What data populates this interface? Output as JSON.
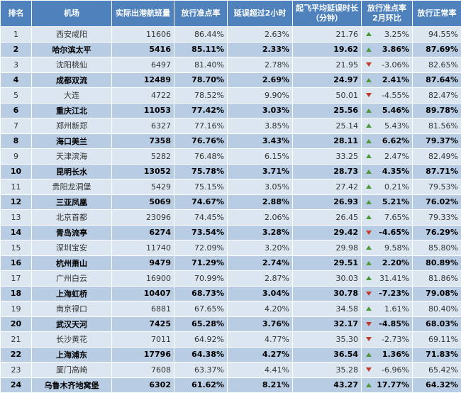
{
  "headers": {
    "rank": "排名",
    "airport": "机场",
    "flights": "实际出港航班量",
    "ontime": "放行准点率",
    "delay2h": "延误超过2小时",
    "avgdelay_line1": "起飞平均延误时长",
    "avgdelay_line2": "（分钟）",
    "mom_line1": "放行准点率",
    "mom_line2": "2月环比",
    "normal": "放行正常率"
  },
  "rows": [
    {
      "rank": "1",
      "airport": "西安咸阳",
      "flights": "11606",
      "ontime": "86.44%",
      "delay2h": "2.63%",
      "avgdelay": "21.76",
      "dir": "up",
      "mom": "3.25%",
      "normal": "94.55%"
    },
    {
      "rank": "2",
      "airport": "哈尔滨太平",
      "flights": "5416",
      "ontime": "85.11%",
      "delay2h": "2.33%",
      "avgdelay": "19.62",
      "dir": "up",
      "mom": "3.86%",
      "normal": "87.69%"
    },
    {
      "rank": "3",
      "airport": "沈阳桃仙",
      "flights": "6497",
      "ontime": "81.40%",
      "delay2h": "2.78%",
      "avgdelay": "21.95",
      "dir": "down",
      "mom": "-3.06%",
      "normal": "82.65%"
    },
    {
      "rank": "4",
      "airport": "成都双流",
      "flights": "12489",
      "ontime": "78.70%",
      "delay2h": "2.69%",
      "avgdelay": "24.97",
      "dir": "up",
      "mom": "2.41%",
      "normal": "87.64%"
    },
    {
      "rank": "5",
      "airport": "大连",
      "flights": "4722",
      "ontime": "78.52%",
      "delay2h": "9.90%",
      "avgdelay": "50.01",
      "dir": "down",
      "mom": "-4.55%",
      "normal": "82.47%"
    },
    {
      "rank": "6",
      "airport": "重庆江北",
      "flights": "11053",
      "ontime": "77.42%",
      "delay2h": "3.03%",
      "avgdelay": "25.56",
      "dir": "up",
      "mom": "5.46%",
      "normal": "89.78%"
    },
    {
      "rank": "7",
      "airport": "郑州新郑",
      "flights": "6327",
      "ontime": "77.16%",
      "delay2h": "3.85%",
      "avgdelay": "25.14",
      "dir": "up",
      "mom": "5.43%",
      "normal": "81.56%"
    },
    {
      "rank": "8",
      "airport": "海口美兰",
      "flights": "7358",
      "ontime": "76.76%",
      "delay2h": "3.43%",
      "avgdelay": "28.11",
      "dir": "up",
      "mom": "6.62%",
      "normal": "79.37%"
    },
    {
      "rank": "9",
      "airport": "天津滨海",
      "flights": "5282",
      "ontime": "76.48%",
      "delay2h": "6.15%",
      "avgdelay": "33.25",
      "dir": "up",
      "mom": "2.47%",
      "normal": "82.49%"
    },
    {
      "rank": "10",
      "airport": "昆明长水",
      "flights": "13052",
      "ontime": "75.78%",
      "delay2h": "3.71%",
      "avgdelay": "28.73",
      "dir": "up",
      "mom": "4.35%",
      "normal": "87.71%"
    },
    {
      "rank": "11",
      "airport": "贵阳龙洞堡",
      "flights": "5429",
      "ontime": "75.15%",
      "delay2h": "3.05%",
      "avgdelay": "27.42",
      "dir": "up",
      "mom": "0.21%",
      "normal": "79.53%"
    },
    {
      "rank": "12",
      "airport": "三亚凤凰",
      "flights": "5069",
      "ontime": "74.67%",
      "delay2h": "2.88%",
      "avgdelay": "26.93",
      "dir": "up",
      "mom": "5.21%",
      "normal": "76.02%"
    },
    {
      "rank": "13",
      "airport": "北京首都",
      "flights": "23096",
      "ontime": "74.45%",
      "delay2h": "2.06%",
      "avgdelay": "26.45",
      "dir": "up",
      "mom": "7.65%",
      "normal": "79.33%"
    },
    {
      "rank": "14",
      "airport": "青岛流亭",
      "flights": "6274",
      "ontime": "73.54%",
      "delay2h": "3.28%",
      "avgdelay": "29.42",
      "dir": "down",
      "mom": "-4.65%",
      "normal": "76.29%"
    },
    {
      "rank": "15",
      "airport": "深圳宝安",
      "flights": "11740",
      "ontime": "72.09%",
      "delay2h": "3.20%",
      "avgdelay": "29.98",
      "dir": "up",
      "mom": "9.58%",
      "normal": "85.80%"
    },
    {
      "rank": "16",
      "airport": "杭州萧山",
      "flights": "9479",
      "ontime": "71.29%",
      "delay2h": "2.74%",
      "avgdelay": "29.51",
      "dir": "up",
      "mom": "2.20%",
      "normal": "80.89%"
    },
    {
      "rank": "17",
      "airport": "广州白云",
      "flights": "16900",
      "ontime": "70.99%",
      "delay2h": "2.87%",
      "avgdelay": "30.03",
      "dir": "up",
      "mom": "31.41%",
      "normal": "81.86%"
    },
    {
      "rank": "18",
      "airport": "上海虹桥",
      "flights": "10407",
      "ontime": "68.73%",
      "delay2h": "3.04%",
      "avgdelay": "30.78",
      "dir": "down",
      "mom": "-7.23%",
      "normal": "79.08%"
    },
    {
      "rank": "19",
      "airport": "南京禄口",
      "flights": "6881",
      "ontime": "67.65%",
      "delay2h": "4.20%",
      "avgdelay": "34.58",
      "dir": "up",
      "mom": "1.61%",
      "normal": "80.40%"
    },
    {
      "rank": "20",
      "airport": "武汉天河",
      "flights": "7425",
      "ontime": "65.28%",
      "delay2h": "3.76%",
      "avgdelay": "32.17",
      "dir": "down",
      "mom": "-4.85%",
      "normal": "68.03%"
    },
    {
      "rank": "21",
      "airport": "长沙黄花",
      "flights": "7011",
      "ontime": "64.92%",
      "delay2h": "4.77%",
      "avgdelay": "35.30",
      "dir": "down",
      "mom": "-2.73%",
      "normal": "69.11%"
    },
    {
      "rank": "22",
      "airport": "上海浦东",
      "flights": "17796",
      "ontime": "64.38%",
      "delay2h": "4.27%",
      "avgdelay": "36.54",
      "dir": "up",
      "mom": "1.36%",
      "normal": "71.83%"
    },
    {
      "rank": "23",
      "airport": "厦门高崎",
      "flights": "7608",
      "ontime": "63.37%",
      "delay2h": "4.41%",
      "avgdelay": "35.28",
      "dir": "down",
      "mom": "-6.96%",
      "normal": "65.42%"
    },
    {
      "rank": "24",
      "airport": "乌鲁木齐地窝堡",
      "flights": "6302",
      "ontime": "61.62%",
      "delay2h": "8.21%",
      "avgdelay": "43.27",
      "dir": "up",
      "mom": "17.77%",
      "normal": "64.32%"
    }
  ],
  "colors": {
    "header_bg": "#4f81bd",
    "row_light": "#dce6f1",
    "row_dark": "#b8cce4",
    "arrow_up": "#4e9a3a",
    "arrow_down": "#c0392b"
  }
}
